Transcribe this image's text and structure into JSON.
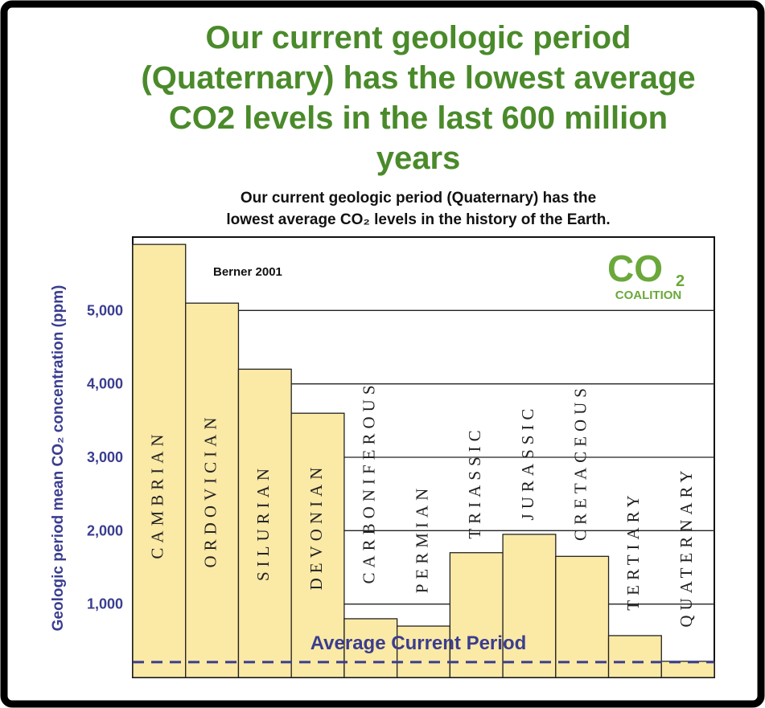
{
  "chart_data": {
    "type": "bar",
    "title_lines": [
      "Our current geologic period",
      "(Quaternary) has the lowest average",
      "CO2 levels in the last 600 million",
      "years"
    ],
    "subtitle_lines": [
      "Our current geologic period (Quaternary) has the",
      "lowest average CO₂ levels in the history of the Earth."
    ],
    "y_label": "Geologic period mean CO₂ concentration (ppm)",
    "annotation": "Berner 2001",
    "logo": [
      "CO",
      "2",
      "COALITION"
    ],
    "categories": [
      "CAMBRIAN",
      "ORDOVICIAN",
      "SILURIAN",
      "DEVONIAN",
      "CARBONIFEROUS",
      "PERMIAN",
      "TRIASSIC",
      "JURASSIC",
      "CRETACEOUS",
      "TERTIARY",
      "QUATERNARY"
    ],
    "values": [
      5900,
      5100,
      4200,
      3600,
      800,
      700,
      1700,
      1950,
      1650,
      570,
      220
    ],
    "color": "#fbe9a6",
    "reference_line": {
      "label": "Average Current Period",
      "value": 210,
      "color": "#3a3d8f"
    },
    "ylim": [
      0,
      6000
    ],
    "yticks": [
      {
        "value": 1000,
        "label": "1,000"
      },
      {
        "value": 2000,
        "label": "2,000"
      },
      {
        "value": 3000,
        "label": "3,000"
      },
      {
        "value": 4000,
        "label": "4,000"
      },
      {
        "value": 5000,
        "label": "5,000"
      }
    ],
    "grid": true
  }
}
